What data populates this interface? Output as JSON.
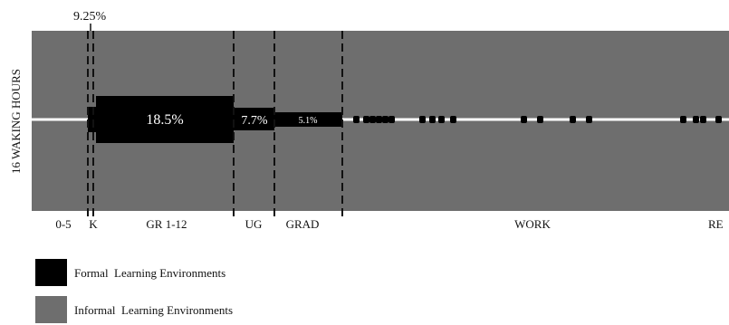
{
  "chart_data": {
    "type": "area",
    "title": "",
    "xlabel": "",
    "ylabel": "16 WAKING HOURS",
    "grid": false,
    "stages": [
      {
        "label": "0-5",
        "formal_pct": null
      },
      {
        "label": "K",
        "formal_pct": 9.25
      },
      {
        "label": "GR 1-12",
        "formal_pct": 18.5
      },
      {
        "label": "UG",
        "formal_pct": 7.7
      },
      {
        "label": "GRAD",
        "formal_pct": 5.1
      },
      {
        "label": "WORK",
        "formal_pct": null
      },
      {
        "label": "RE",
        "formal_pct": null
      }
    ],
    "value_labels": {
      "k": "9.25%",
      "gr": "18.5%",
      "ug": "7.7%",
      "grad": "5.1%"
    },
    "legend": {
      "placement": "bottom-left",
      "items": [
        {
          "label": "Formal  Learning Environments",
          "color": "#000000"
        },
        {
          "label": "Informal  Learning Environments",
          "color": "#6e6e6e"
        }
      ]
    },
    "colors": {
      "informal": "#6e6e6e",
      "formal": "#000000",
      "baseline": "#ffffff"
    }
  }
}
